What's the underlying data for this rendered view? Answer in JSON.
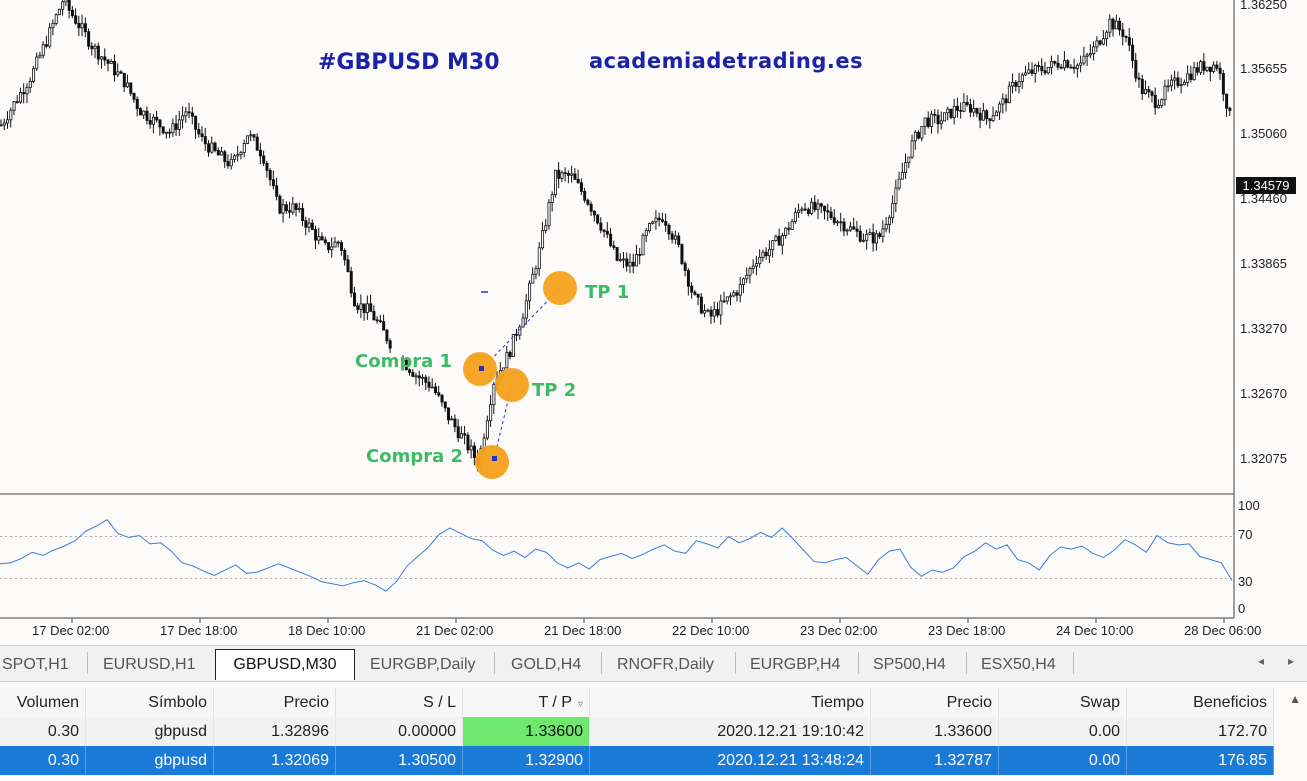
{
  "chart": {
    "symbol_title": "#GBPUSD M30",
    "site_title": "academiadetrading.es",
    "colors": {
      "annotation_dot": "#f5a11a",
      "annotation_text": "#3dbb62",
      "title": "#1a22a8",
      "rsi_line": "#3a7fd6",
      "candles": "#111111"
    },
    "price_axis": [
      "1.36250",
      "1.35655",
      "1.35060",
      "1.34460",
      "1.33865",
      "1.33270",
      "1.32670",
      "1.32075"
    ],
    "current_price": "1.34579",
    "rsi_axis": [
      "100",
      "70",
      "30",
      "0"
    ],
    "time_axis": [
      "17 Dec 02:00",
      "17 Dec 18:00",
      "18 Dec 10:00",
      "21 Dec 02:00",
      "21 Dec 18:00",
      "22 Dec 10:00",
      "23 Dec 02:00",
      "23 Dec 18:00",
      "24 Dec 10:00",
      "28 Dec 06:00"
    ],
    "annotations": {
      "tp1": "TP 1",
      "compra1": "Compra 1",
      "tp2": "TP 2",
      "compra2": "Compra 2"
    },
    "candle_prices": [
      1.3515,
      1.3538,
      1.3561,
      1.3594,
      1.3629,
      1.3608,
      1.3586,
      1.3571,
      1.3555,
      1.3529,
      1.3518,
      1.3508,
      1.3528,
      1.3502,
      1.3488,
      1.3478,
      1.3507,
      1.3488,
      1.3439,
      1.3439,
      1.3422,
      1.3402,
      1.3408,
      1.3352,
      1.3343,
      1.3321,
      1.33,
      1.3285,
      1.3275,
      1.3248,
      1.3227,
      1.3205,
      1.328,
      1.3306,
      1.3347,
      1.3402,
      1.3468,
      1.3468,
      1.3448,
      1.3422,
      1.3391,
      1.3385,
      1.3418,
      1.3432,
      1.3402,
      1.3356,
      1.3338,
      1.3352,
      1.3366,
      1.3392,
      1.3402,
      1.3418,
      1.3441,
      1.3437,
      1.3431,
      1.3421,
      1.3412,
      1.3411,
      1.3447,
      1.3493,
      1.3519,
      1.3519,
      1.353,
      1.3531,
      1.3521,
      1.3534,
      1.3557,
      1.3564,
      1.3568,
      1.3574,
      1.3569,
      1.3585,
      1.361,
      1.3598,
      1.3548,
      1.3536,
      1.3551,
      1.356,
      1.3569,
      1.357,
      1.351
    ],
    "rsi_values": [
      44,
      45,
      49,
      55,
      52,
      57,
      61,
      66,
      75,
      80,
      86,
      73,
      69,
      71,
      63,
      64,
      56,
      45,
      42,
      37,
      33,
      38,
      43,
      35,
      36,
      40,
      44,
      40,
      36,
      32,
      27,
      25,
      23,
      26,
      28,
      24,
      18,
      27,
      42,
      51,
      60,
      72,
      78,
      73,
      68,
      66,
      57,
      52,
      56,
      50,
      58,
      55,
      45,
      40,
      45,
      39,
      48,
      51,
      54,
      49,
      53,
      58,
      62,
      56,
      54,
      66,
      63,
      59,
      70,
      64,
      68,
      74,
      69,
      78,
      68,
      57,
      46,
      45,
      48,
      50,
      42,
      34,
      48,
      56,
      58,
      41,
      32,
      38,
      36,
      40,
      51,
      56,
      64,
      58,
      62,
      48,
      45,
      38,
      52,
      60,
      58,
      61,
      54,
      50,
      57,
      67,
      62,
      55,
      71,
      64,
      62,
      63,
      51,
      48,
      45,
      28
    ]
  },
  "tabs": [
    {
      "label": "SPOT,H1"
    },
    {
      "label": "EURUSD,H1"
    },
    {
      "label": "GBPUSD,M30",
      "active": true
    },
    {
      "label": "EURGBP,Daily"
    },
    {
      "label": "GOLD,H4"
    },
    {
      "label": "RNOFR,Daily"
    },
    {
      "label": "EURGBP,H4"
    },
    {
      "label": "SP500,H4"
    },
    {
      "label": "ESX50,H4"
    }
  ],
  "table": {
    "headers": [
      "Volumen",
      "Símbolo",
      "Precio",
      "S / L",
      "T / P",
      "Tiempo",
      "Precio",
      "Swap",
      "Beneficios"
    ],
    "rows": [
      [
        "0.30",
        "gbpusd",
        "1.32896",
        "0.00000",
        "1.33600",
        "2020.12.21 19:10:42",
        "1.33600",
        "0.00",
        "172.70"
      ],
      [
        "0.30",
        "gbpusd",
        "1.32069",
        "1.30500",
        "1.32900",
        "2020.12.21 13:48:24",
        "1.32787",
        "0.00",
        "176.85"
      ]
    ]
  }
}
